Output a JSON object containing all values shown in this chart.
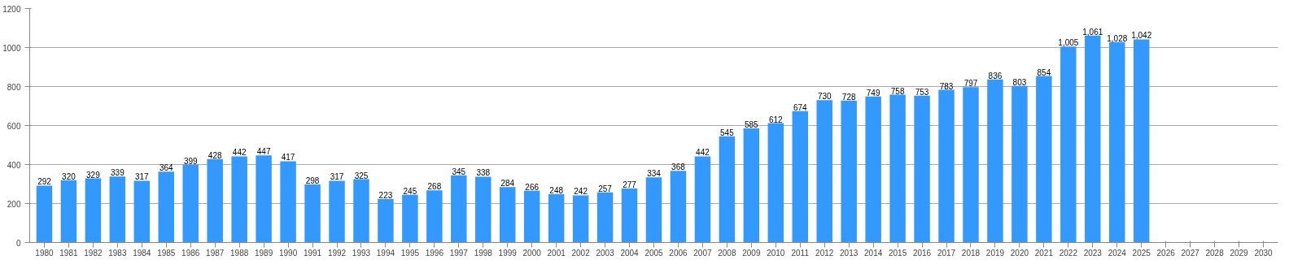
{
  "chart_data": {
    "type": "bar",
    "categories": [
      "1980",
      "1981",
      "1982",
      "1983",
      "1984",
      "1985",
      "1986",
      "1987",
      "1988",
      "1989",
      "1990",
      "1991",
      "1992",
      "1993",
      "1994",
      "1995",
      "1996",
      "1997",
      "1998",
      "1999",
      "2000",
      "2001",
      "2002",
      "2003",
      "2004",
      "2005",
      "2006",
      "2007",
      "2008",
      "2009",
      "2010",
      "2011",
      "2012",
      "2013",
      "2014",
      "2015",
      "2016",
      "2017",
      "2018",
      "2019",
      "2020",
      "2021",
      "2022",
      "2023",
      "2024",
      "2025",
      "2026",
      "2027",
      "2028",
      "2029",
      "2030"
    ],
    "values": [
      292,
      320,
      329,
      339,
      317,
      364,
      399,
      428,
      442,
      447,
      417,
      298,
      317,
      325,
      223,
      245,
      268,
      345,
      338,
      284,
      266,
      248,
      242,
      257,
      277,
      334,
      368,
      442,
      545,
      585,
      612,
      674,
      730,
      728,
      749,
      758,
      753,
      783,
      797,
      836,
      803,
      854,
      1005,
      1061,
      1028,
      1042,
      null,
      null,
      null,
      null,
      null
    ],
    "value_labels": [
      "292",
      "320",
      "329",
      "339",
      "317",
      "364",
      "399",
      "428",
      "442",
      "447",
      "417",
      "298",
      "317",
      "325",
      "223",
      "245",
      "268",
      "345",
      "338",
      "284",
      "266",
      "248",
      "242",
      "257",
      "277",
      "334",
      "368",
      "442",
      "545",
      "585",
      "612",
      "674",
      "730",
      "728",
      "749",
      "758",
      "753",
      "783",
      "797",
      "836",
      "803",
      "854",
      "1,005",
      "1,061",
      "1,028",
      "1,042",
      null,
      null,
      null,
      null,
      null
    ],
    "color": "#3399ff",
    "ylim": [
      0,
      1200
    ],
    "yticks": [
      0,
      200,
      400,
      600,
      800,
      1000,
      1200
    ],
    "grid": "y"
  }
}
